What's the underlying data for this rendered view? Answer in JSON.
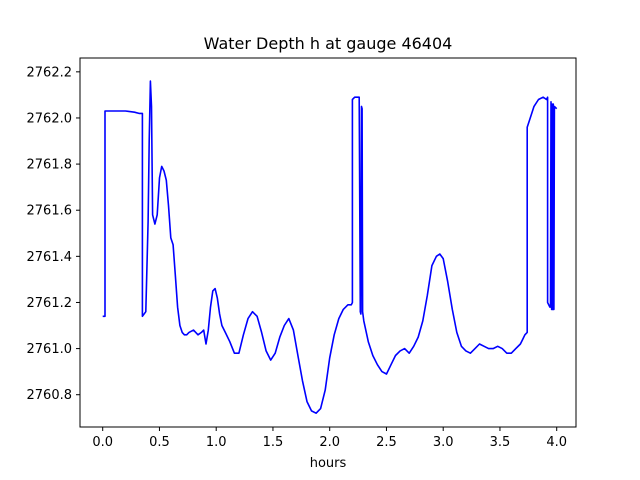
{
  "chart_data": {
    "type": "line",
    "title": "Water Depth h at gauge 46404",
    "xlabel": "hours",
    "ylabel": "",
    "xlim": [
      -0.2,
      4.17
    ],
    "ylim": [
      2760.66,
      2762.26
    ],
    "xticks": [
      0.0,
      0.5,
      1.0,
      1.5,
      2.0,
      2.5,
      3.0,
      3.5,
      4.0
    ],
    "xtick_labels": [
      "0.0",
      "0.5",
      "1.0",
      "1.5",
      "2.0",
      "2.5",
      "3.0",
      "3.5",
      "4.0"
    ],
    "yticks": [
      2760.8,
      2761.0,
      2761.2,
      2761.4,
      2761.6,
      2761.8,
      2762.0,
      2762.2
    ],
    "ytick_labels": [
      "2760.8",
      "2761.0",
      "2761.2",
      "2761.4",
      "2761.6",
      "2761.8",
      "2762.0",
      "2762.2"
    ],
    "grid": false,
    "legend": "none",
    "series": [
      {
        "color": "#0000ff",
        "x": [
          0.0,
          0.02,
          0.02,
          0.1,
          0.2,
          0.28,
          0.32,
          0.33,
          0.35,
          0.35,
          0.38,
          0.4,
          0.41,
          0.42,
          0.43,
          0.44,
          0.46,
          0.48,
          0.5,
          0.52,
          0.54,
          0.56,
          0.58,
          0.6,
          0.62,
          0.64,
          0.66,
          0.68,
          0.7,
          0.72,
          0.74,
          0.76,
          0.8,
          0.84,
          0.87,
          0.89,
          0.91,
          0.93,
          0.95,
          0.97,
          0.99,
          1.01,
          1.03,
          1.05,
          1.08,
          1.12,
          1.16,
          1.2,
          1.24,
          1.28,
          1.32,
          1.36,
          1.4,
          1.44,
          1.48,
          1.52,
          1.56,
          1.6,
          1.64,
          1.68,
          1.72,
          1.76,
          1.8,
          1.84,
          1.88,
          1.92,
          1.96,
          2.0,
          2.04,
          2.08,
          2.12,
          2.16,
          2.19,
          2.2,
          2.2,
          2.22,
          2.24,
          2.26,
          2.27,
          2.275,
          2.28,
          2.285,
          2.29,
          2.3,
          2.34,
          2.38,
          2.42,
          2.46,
          2.5,
          2.54,
          2.58,
          2.62,
          2.66,
          2.7,
          2.74,
          2.78,
          2.82,
          2.86,
          2.9,
          2.94,
          2.97,
          3.0,
          3.04,
          3.08,
          3.12,
          3.16,
          3.2,
          3.24,
          3.28,
          3.32,
          3.36,
          3.4,
          3.44,
          3.48,
          3.52,
          3.56,
          3.6,
          3.64,
          3.68,
          3.7,
          3.72,
          3.74,
          3.74,
          3.76,
          3.8,
          3.84,
          3.88,
          3.91,
          3.92,
          3.92,
          3.94,
          3.945,
          3.95,
          3.955,
          3.96,
          3.965,
          3.97,
          3.975,
          3.98,
          4.0
        ],
        "values": [
          2761.14,
          2761.14,
          2762.03,
          2762.03,
          2762.03,
          2762.025,
          2762.02,
          2762.02,
          2762.02,
          2761.14,
          2761.16,
          2761.55,
          2761.9,
          2762.16,
          2762.05,
          2761.58,
          2761.54,
          2761.58,
          2761.74,
          2761.79,
          2761.77,
          2761.73,
          2761.62,
          2761.48,
          2761.45,
          2761.32,
          2761.18,
          2761.1,
          2761.07,
          2761.06,
          2761.06,
          2761.07,
          2761.08,
          2761.06,
          2761.07,
          2761.08,
          2761.02,
          2761.08,
          2761.18,
          2761.25,
          2761.26,
          2761.22,
          2761.15,
          2761.1,
          2761.07,
          2761.03,
          2760.98,
          2760.98,
          2761.06,
          2761.13,
          2761.16,
          2761.14,
          2761.07,
          2760.99,
          2760.95,
          2760.98,
          2761.05,
          2761.1,
          2761.13,
          2761.08,
          2760.97,
          2760.86,
          2760.77,
          2760.73,
          2760.72,
          2760.74,
          2760.82,
          2760.96,
          2761.06,
          2761.13,
          2761.17,
          2761.19,
          2761.19,
          2761.2,
          2762.08,
          2762.09,
          2762.09,
          2762.09,
          2761.16,
          2761.15,
          2762.05,
          2762.04,
          2761.16,
          2761.12,
          2761.03,
          2760.97,
          2760.93,
          2760.9,
          2760.89,
          2760.93,
          2760.97,
          2760.99,
          2761.0,
          2760.98,
          2761.01,
          2761.05,
          2761.12,
          2761.23,
          2761.36,
          2761.4,
          2761.41,
          2761.39,
          2761.29,
          2761.17,
          2761.07,
          2761.01,
          2760.99,
          2760.98,
          2761.0,
          2761.02,
          2761.01,
          2761.0,
          2761.0,
          2761.01,
          2761.0,
          2760.98,
          2760.98,
          2761.0,
          2761.02,
          2761.04,
          2761.06,
          2761.07,
          2761.96,
          2761.99,
          2762.05,
          2762.08,
          2762.09,
          2762.08,
          2762.09,
          2761.2,
          2761.18,
          2761.18,
          2762.07,
          2761.17,
          2762.06,
          2761.17,
          2762.06,
          2761.17,
          2762.05,
          2762.04
        ]
      }
    ]
  }
}
